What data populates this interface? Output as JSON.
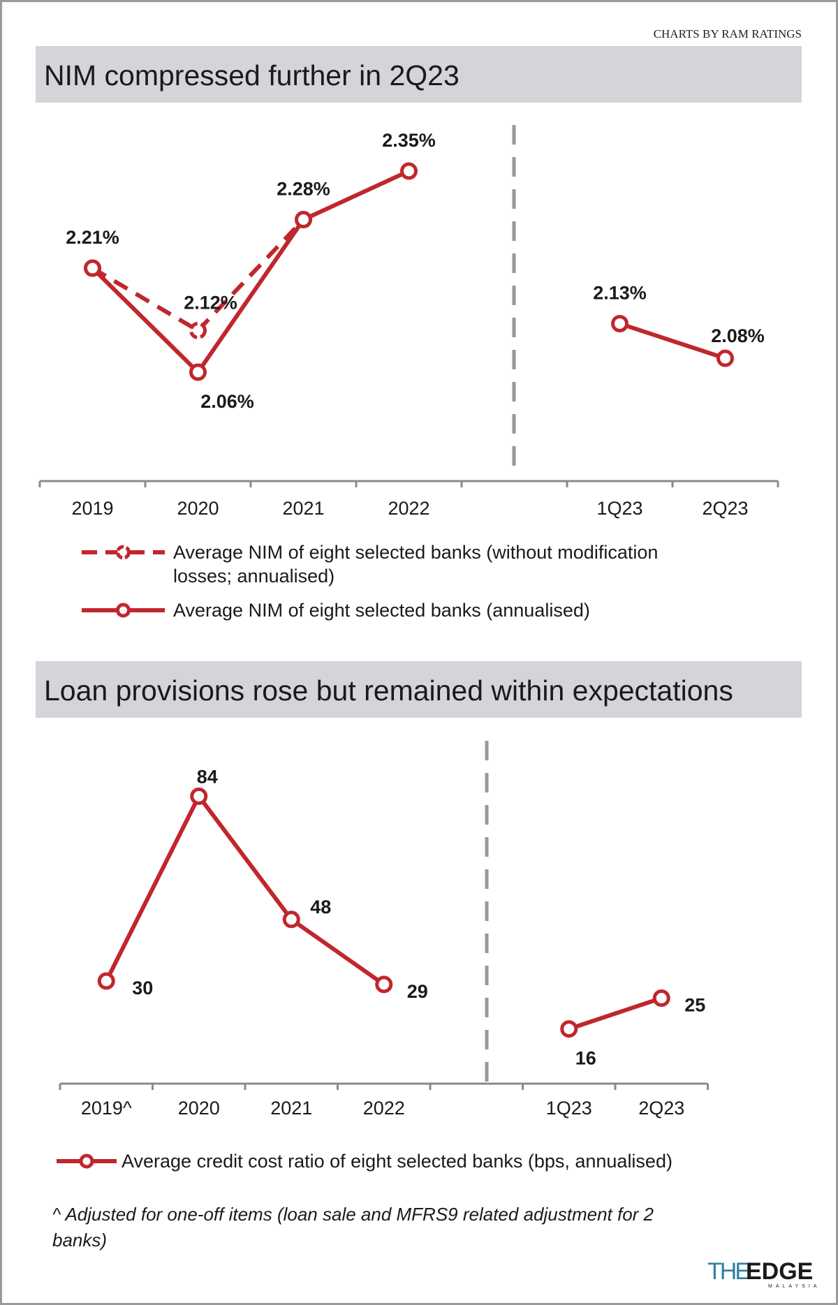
{
  "credit": "CHARTS BY RAM RATINGS",
  "colors": {
    "series": "#c0272d",
    "header_bg": "#d3d5d8",
    "divider": "#999999",
    "logo_the": "#2d7fa6",
    "logo_edge": "#1a1a1a"
  },
  "logo": {
    "main_a": "THE",
    "main_b": "EDGE",
    "sub": "MALAYSIA"
  },
  "chart_data": [
    {
      "type": "line",
      "title": "NIM compressed further in 2Q23",
      "categories": [
        "2019",
        "2020",
        "2021",
        "2022",
        "",
        "1Q23",
        "2Q23"
      ],
      "ylim": [
        1.9,
        2.42
      ],
      "grid": false,
      "legend_position": "bottom",
      "series": [
        {
          "name": "Average NIM of eight selected banks (without modification losses; annualised)",
          "legend_lines": [
            "Average NIM of eight selected banks (without modification",
            "losses; annualised)"
          ],
          "style": "dashed",
          "values": [
            2.21,
            2.12,
            2.28,
            null,
            null,
            null,
            null
          ],
          "labels": [
            "",
            "2.12%",
            "",
            "",
            "",
            "",
            ""
          ]
        },
        {
          "name": "Average NIM of eight selected banks (annualised)",
          "legend_lines": [
            "Average NIM of eight selected banks (annualised)"
          ],
          "style": "solid",
          "values": [
            2.21,
            2.06,
            2.28,
            2.35,
            null,
            2.13,
            2.08
          ],
          "labels": [
            "2.21%",
            "2.06%",
            "2.28%",
            "2.35%",
            "",
            "2.13%",
            "2.08%"
          ]
        }
      ]
    },
    {
      "type": "line",
      "title": "Loan provisions rose but remained within expectations",
      "categories": [
        "2019^",
        "2020",
        "2021",
        "2022",
        "",
        "1Q23",
        "2Q23"
      ],
      "ylim": [
        0,
        100
      ],
      "grid": false,
      "legend_position": "bottom",
      "series": [
        {
          "name": "Average credit cost ratio of eight selected banks (bps, annualised)",
          "legend_lines": [
            "Average credit cost ratio of eight selected banks (bps, annualised)"
          ],
          "style": "solid",
          "values": [
            30,
            84,
            48,
            29,
            null,
            16,
            25
          ],
          "labels": [
            "30",
            "84",
            "48",
            "29",
            "",
            "16",
            "25"
          ]
        }
      ],
      "footnote": [
        "^ Adjusted for one-off items (loan sale and MFRS9 related adjustment for 2",
        "banks)"
      ]
    }
  ]
}
